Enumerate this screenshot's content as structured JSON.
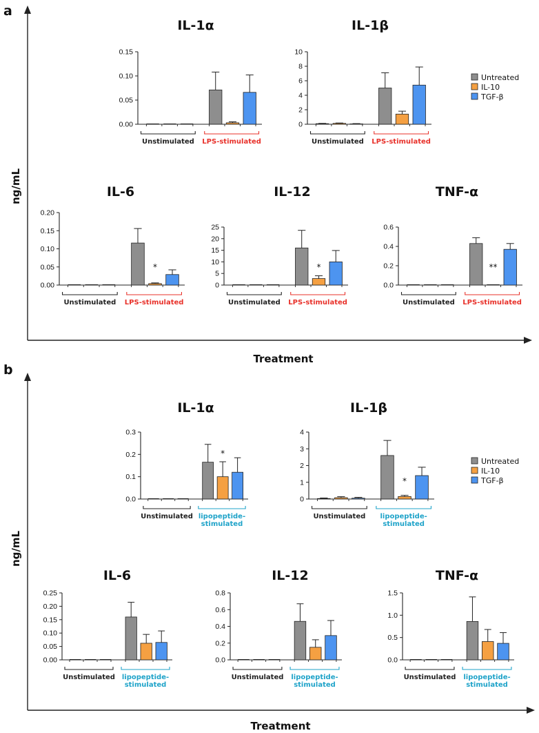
{
  "colors": {
    "untreated": "#8e8e8e",
    "il10": "#f5a042",
    "tgfb": "#4d94f0",
    "red": "#e8312a",
    "cyan": "#1fa3c9",
    "axis": "#222222"
  },
  "legend": [
    {
      "label": "Untreated",
      "color": "#8e8e8e"
    },
    {
      "label": "IL-10",
      "color": "#f5a042"
    },
    {
      "label": "TGF-β",
      "color": "#4d94f0"
    }
  ],
  "panels": [
    {
      "label": "a",
      "ylabel": "ng/mL",
      "xlabel": "Treatment",
      "stim_color": "red",
      "charts": [
        {
          "title": "IL-1α",
          "yticks": [
            "0.00",
            "0.05",
            "0.10",
            "0.15"
          ],
          "ymax": 0.15,
          "unstim": {
            "values": [
              0,
              0,
              0
            ],
            "errors": [
              0,
              0,
              0
            ]
          },
          "stim": {
            "values": [
              0.071,
              0.003,
              0.066
            ],
            "errors": [
              0.037,
              0.002,
              0.036
            ]
          },
          "sig": [
            null,
            null,
            null
          ],
          "groups": [
            "Unstimulated",
            [
              "LPS-stimulated"
            ]
          ]
        },
        {
          "title": "IL-1β",
          "yticks": [
            "0",
            "2",
            "4",
            "6",
            "8",
            "10"
          ],
          "ymax": 10,
          "unstim": {
            "values": [
              0.08,
              0.12,
              0.05
            ],
            "errors": [
              0.04,
              0.05,
              0.04
            ]
          },
          "stim": {
            "values": [
              5.0,
              1.4,
              5.4
            ],
            "errors": [
              2.1,
              0.4,
              2.5
            ]
          },
          "sig": [
            null,
            null,
            null
          ],
          "groups": [
            "Unstimulated",
            [
              "LPS-stimulated"
            ]
          ]
        },
        {
          "title": "IL-6",
          "yticks": [
            "0.00",
            "0.05",
            "0.10",
            "0.15",
            "0.20"
          ],
          "ymax": 0.2,
          "unstim": {
            "values": [
              0,
              0,
              0
            ],
            "errors": [
              0,
              0,
              0
            ]
          },
          "stim": {
            "values": [
              0.116,
              0.004,
              0.029
            ],
            "errors": [
              0.04,
              0.002,
              0.013
            ]
          },
          "sig": [
            null,
            "*",
            null
          ],
          "groups": [
            "Unstimulated",
            [
              "LPS-stimulated"
            ]
          ]
        },
        {
          "title": "IL-12",
          "yticks": [
            "0",
            "5",
            "10",
            "15",
            "20",
            "25"
          ],
          "ymax": 25,
          "unstim": {
            "values": [
              0,
              0,
              0
            ],
            "errors": [
              0,
              0,
              0
            ]
          },
          "stim": {
            "values": [
              16.0,
              2.8,
              10.0
            ],
            "errors": [
              7.6,
              1.2,
              4.9
            ]
          },
          "sig": [
            null,
            "*",
            null
          ],
          "groups": [
            "Unstimulated",
            [
              "LPS-stimulated"
            ]
          ]
        },
        {
          "title": "TNF-α",
          "yticks": [
            "0.0",
            "0.2",
            "0.4",
            "0.6"
          ],
          "ymax": 0.6,
          "unstim": {
            "values": [
              0,
              0,
              0
            ],
            "errors": [
              0,
              0,
              0
            ]
          },
          "stim": {
            "values": [
              0.43,
              0,
              0.37
            ],
            "errors": [
              0.06,
              0,
              0.06
            ]
          },
          "sig": [
            null,
            "**",
            null
          ],
          "groups": [
            "Unstimulated",
            [
              "LPS-stimulated"
            ]
          ]
        }
      ]
    },
    {
      "label": "b",
      "ylabel": "ng/mL",
      "xlabel": "Treatment",
      "stim_color": "cyan",
      "charts": [
        {
          "title": "IL-1α",
          "yticks": [
            "0.0",
            "0.1",
            "0.2",
            "0.3"
          ],
          "ymax": 0.3,
          "unstim": {
            "values": [
              0,
              0,
              0
            ],
            "errors": [
              0,
              0,
              0
            ]
          },
          "stim": {
            "values": [
              0.165,
              0.1,
              0.12
            ],
            "errors": [
              0.08,
              0.067,
              0.065
            ]
          },
          "sig": [
            null,
            "*",
            null
          ],
          "groups": [
            "Unstimulated",
            [
              "lipopeptide-",
              "stimulated"
            ]
          ]
        },
        {
          "title": "IL-1β",
          "yticks": [
            "0",
            "1",
            "2",
            "3",
            "4"
          ],
          "ymax": 4,
          "unstim": {
            "values": [
              0.03,
              0.08,
              0.05
            ],
            "errors": [
              0.03,
              0.06,
              0.05
            ]
          },
          "stim": {
            "values": [
              2.6,
              0.15,
              1.4
            ],
            "errors": [
              0.9,
              0.07,
              0.5
            ]
          },
          "sig": [
            null,
            "*",
            null
          ],
          "groups": [
            "Unstimulated",
            [
              "lipopeptide-",
              "stimulated"
            ]
          ]
        },
        {
          "title": "IL-6",
          "yticks": [
            "0.00",
            "0.05",
            "0.10",
            "0.15",
            "0.20",
            "0.25"
          ],
          "ymax": 0.25,
          "unstim": {
            "values": [
              0,
              0,
              0
            ],
            "errors": [
              0,
              0,
              0
            ]
          },
          "stim": {
            "values": [
              0.16,
              0.062,
              0.065
            ],
            "errors": [
              0.055,
              0.033,
              0.043
            ]
          },
          "sig": [
            null,
            null,
            null
          ],
          "groups": [
            "Unstimulated",
            [
              "lipopeptide-",
              "stimulated"
            ]
          ]
        },
        {
          "title": "IL-12",
          "yticks": [
            "0.0",
            "0.2",
            "0.4",
            "0.6",
            "0.8"
          ],
          "ymax": 0.8,
          "unstim": {
            "values": [
              0,
              0,
              0
            ],
            "errors": [
              0,
              0,
              0
            ]
          },
          "stim": {
            "values": [
              0.46,
              0.15,
              0.29
            ],
            "errors": [
              0.21,
              0.09,
              0.18
            ]
          },
          "sig": [
            null,
            null,
            null
          ],
          "groups": [
            "Unstimulated",
            [
              "lipopeptide-",
              "stimulated"
            ]
          ]
        },
        {
          "title": "TNF-α",
          "yticks": [
            "0.0",
            "0.5",
            "1.0",
            "1.5"
          ],
          "ymax": 1.5,
          "unstim": {
            "values": [
              0,
              0,
              0
            ],
            "errors": [
              0,
              0,
              0
            ]
          },
          "stim": {
            "values": [
              0.86,
              0.41,
              0.37
            ],
            "errors": [
              0.55,
              0.27,
              0.24
            ]
          },
          "sig": [
            null,
            null,
            null
          ],
          "groups": [
            "Unstimulated",
            [
              "lipopeptide-",
              "stimulated"
            ]
          ]
        }
      ]
    }
  ],
  "chart_data": [
    {
      "type": "bar",
      "panel": "a",
      "title": "IL-1α",
      "ylabel": "ng/mL",
      "categories": [
        "Unstimulated",
        "LPS-stimulated"
      ],
      "series": [
        {
          "name": "Untreated",
          "values": [
            0,
            0.071
          ]
        },
        {
          "name": "IL-10",
          "values": [
            0,
            0.003
          ]
        },
        {
          "name": "TGF-β",
          "values": [
            0,
            0.066
          ]
        }
      ],
      "ylim": [
        0,
        0.15
      ]
    },
    {
      "type": "bar",
      "panel": "a",
      "title": "IL-1β",
      "ylabel": "ng/mL",
      "categories": [
        "Unstimulated",
        "LPS-stimulated"
      ],
      "series": [
        {
          "name": "Untreated",
          "values": [
            0.08,
            5.0
          ]
        },
        {
          "name": "IL-10",
          "values": [
            0.12,
            1.4
          ]
        },
        {
          "name": "TGF-β",
          "values": [
            0.05,
            5.4
          ]
        }
      ],
      "ylim": [
        0,
        10
      ]
    },
    {
      "type": "bar",
      "panel": "a",
      "title": "IL-6",
      "ylabel": "ng/mL",
      "categories": [
        "Unstimulated",
        "LPS-stimulated"
      ],
      "series": [
        {
          "name": "Untreated",
          "values": [
            0,
            0.116
          ]
        },
        {
          "name": "IL-10",
          "values": [
            0,
            0.004
          ]
        },
        {
          "name": "TGF-β",
          "values": [
            0,
            0.029
          ]
        }
      ],
      "ylim": [
        0,
        0.2
      ]
    },
    {
      "type": "bar",
      "panel": "a",
      "title": "IL-12",
      "ylabel": "ng/mL",
      "categories": [
        "Unstimulated",
        "LPS-stimulated"
      ],
      "series": [
        {
          "name": "Untreated",
          "values": [
            0,
            16.0
          ]
        },
        {
          "name": "IL-10",
          "values": [
            0,
            2.8
          ]
        },
        {
          "name": "TGF-β",
          "values": [
            0,
            10.0
          ]
        }
      ],
      "ylim": [
        0,
        25
      ]
    },
    {
      "type": "bar",
      "panel": "a",
      "title": "TNF-α",
      "ylabel": "ng/mL",
      "categories": [
        "Unstimulated",
        "LPS-stimulated"
      ],
      "series": [
        {
          "name": "Untreated",
          "values": [
            0,
            0.43
          ]
        },
        {
          "name": "IL-10",
          "values": [
            0,
            0
          ]
        },
        {
          "name": "TGF-β",
          "values": [
            0,
            0.37
          ]
        }
      ],
      "ylim": [
        0,
        0.6
      ]
    },
    {
      "type": "bar",
      "panel": "b",
      "title": "IL-1α",
      "ylabel": "ng/mL",
      "categories": [
        "Unstimulated",
        "lipopeptide-stimulated"
      ],
      "series": [
        {
          "name": "Untreated",
          "values": [
            0,
            0.165
          ]
        },
        {
          "name": "IL-10",
          "values": [
            0,
            0.1
          ]
        },
        {
          "name": "TGF-β",
          "values": [
            0,
            0.12
          ]
        }
      ],
      "ylim": [
        0,
        0.3
      ]
    },
    {
      "type": "bar",
      "panel": "b",
      "title": "IL-1β",
      "ylabel": "ng/mL",
      "categories": [
        "Unstimulated",
        "lipopeptide-stimulated"
      ],
      "series": [
        {
          "name": "Untreated",
          "values": [
            0.03,
            2.6
          ]
        },
        {
          "name": "IL-10",
          "values": [
            0.08,
            0.15
          ]
        },
        {
          "name": "TGF-β",
          "values": [
            0.05,
            1.4
          ]
        }
      ],
      "ylim": [
        0,
        4
      ]
    },
    {
      "type": "bar",
      "panel": "b",
      "title": "IL-6",
      "ylabel": "ng/mL",
      "categories": [
        "Unstimulated",
        "lipopeptide-stimulated"
      ],
      "series": [
        {
          "name": "Untreated",
          "values": [
            0,
            0.16
          ]
        },
        {
          "name": "IL-10",
          "values": [
            0,
            0.062
          ]
        },
        {
          "name": "TGF-β",
          "values": [
            0,
            0.065
          ]
        }
      ],
      "ylim": [
        0,
        0.25
      ]
    },
    {
      "type": "bar",
      "panel": "b",
      "title": "IL-12",
      "ylabel": "ng/mL",
      "categories": [
        "Unstimulated",
        "lipopeptide-stimulated"
      ],
      "series": [
        {
          "name": "Untreated",
          "values": [
            0,
            0.46
          ]
        },
        {
          "name": "IL-10",
          "values": [
            0,
            0.15
          ]
        },
        {
          "name": "TGF-β",
          "values": [
            0,
            0.29
          ]
        }
      ],
      "ylim": [
        0,
        0.8
      ]
    },
    {
      "type": "bar",
      "panel": "b",
      "title": "TNF-α",
      "ylabel": "ng/mL",
      "categories": [
        "Unstimulated",
        "lipopeptide-stimulated"
      ],
      "series": [
        {
          "name": "Untreated",
          "values": [
            0,
            0.86
          ]
        },
        {
          "name": "IL-10",
          "values": [
            0,
            0.41
          ]
        },
        {
          "name": "TGF-β",
          "values": [
            0,
            0.37
          ]
        }
      ],
      "ylim": [
        0,
        1.5
      ]
    }
  ]
}
